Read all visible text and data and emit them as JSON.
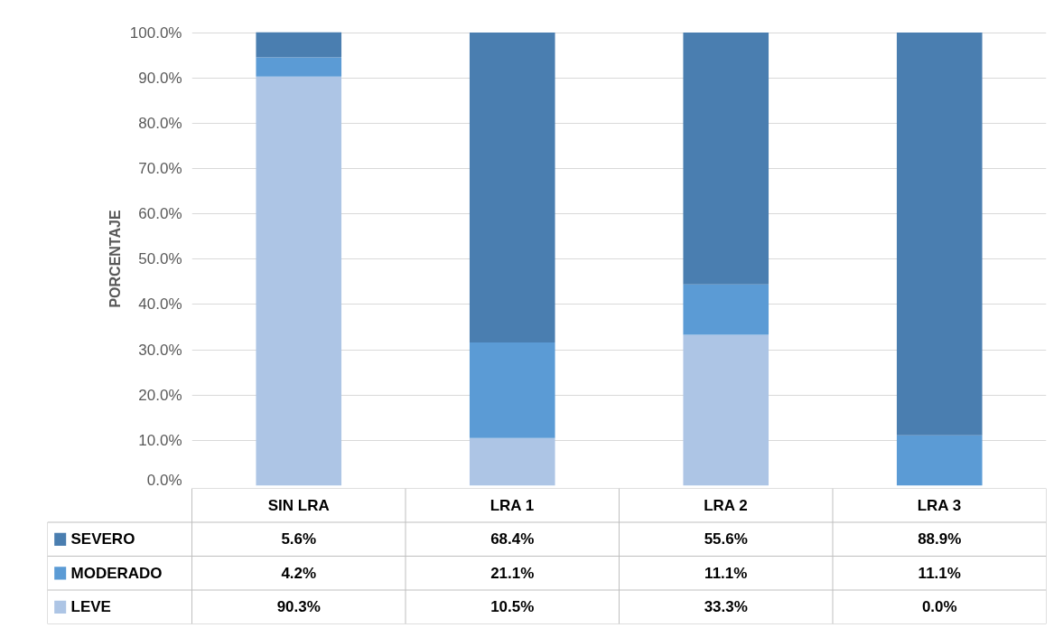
{
  "chart_data": {
    "type": "bar",
    "stacked": true,
    "ylabel": "PORCENTAJE",
    "categories": [
      "SIN LRA",
      "LRA 1",
      "LRA 2",
      "LRA 3"
    ],
    "series": [
      {
        "name": "LEVE",
        "color": "#adc5e5",
        "values": [
          90.3,
          10.5,
          33.3,
          0.0
        ],
        "value_labels": [
          "90.3%",
          "10.5%",
          "33.3%",
          "0.0%"
        ]
      },
      {
        "name": "MODERADO",
        "color": "#5b9bd5",
        "values": [
          4.2,
          21.1,
          11.1,
          11.1
        ],
        "value_labels": [
          "4.2%",
          "21.1%",
          "11.1%",
          "11.1%"
        ]
      },
      {
        "name": "SEVERO",
        "color": "#4a7eb0",
        "values": [
          5.6,
          68.4,
          55.6,
          88.9
        ],
        "value_labels": [
          "5.6%",
          "68.4%",
          "55.6%",
          "88.9%"
        ]
      }
    ],
    "ylim": [
      0,
      100.1
    ],
    "yticks": [
      {
        "value": 0,
        "label": "0.0%"
      },
      {
        "value": 10,
        "label": "10.0%"
      },
      {
        "value": 20,
        "label": "20.0%"
      },
      {
        "value": 30,
        "label": "30.0%"
      },
      {
        "value": 40,
        "label": "40.0%"
      },
      {
        "value": 50,
        "label": "50.0%"
      },
      {
        "value": 60,
        "label": "60.0%"
      },
      {
        "value": 70,
        "label": "70.0%"
      },
      {
        "value": 80,
        "label": "80.0%"
      },
      {
        "value": 90,
        "label": "90.0%"
      },
      {
        "value": 100,
        "label": "100.0%"
      }
    ],
    "grid": "y",
    "legend": "bottom"
  }
}
